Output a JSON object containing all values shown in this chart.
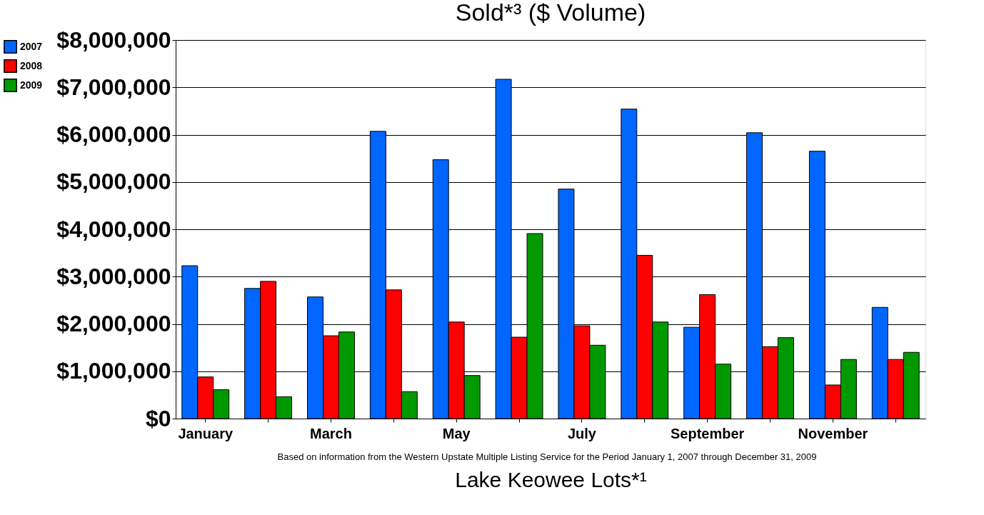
{
  "chart_data": {
    "type": "bar",
    "title": "Sold*³ ($ Volume)",
    "xlabel": "Lake Keowee Lots*¹",
    "annotations": [
      "Based on information from the Western Upstate Multiple Listing Service for the Period January 1, 2007 through December 31, 2009"
    ],
    "categories": [
      "January",
      null,
      "March",
      null,
      "May",
      null,
      "July",
      null,
      "September",
      null,
      "November",
      null
    ],
    "series": [
      {
        "name": "2007",
        "color": "#0066ff",
        "values": [
          3230000,
          2750000,
          2570000,
          6070000,
          5470000,
          7170000,
          4850000,
          6540000,
          1930000,
          6040000,
          5650000,
          2350000
        ]
      },
      {
        "name": "2008",
        "color": "#ff0000",
        "values": [
          880000,
          2900000,
          1750000,
          2720000,
          2040000,
          1720000,
          1960000,
          3450000,
          2620000,
          1520000,
          710000,
          1250000
        ]
      },
      {
        "name": "2009",
        "color": "#009900",
        "values": [
          610000,
          460000,
          1830000,
          570000,
          910000,
          3910000,
          1550000,
          2040000,
          1150000,
          1710000,
          1250000,
          1400000
        ]
      }
    ],
    "ylim": [
      0,
      8000000
    ],
    "yticks": [
      {
        "value": 0,
        "label": "$0"
      },
      {
        "value": 1000000,
        "label": "$1,000,000"
      },
      {
        "value": 2000000,
        "label": "$2,000,000"
      },
      {
        "value": 3000000,
        "label": "$3,000,000"
      },
      {
        "value": 4000000,
        "label": "$4,000,000"
      },
      {
        "value": 5000000,
        "label": "$5,000,000"
      },
      {
        "value": 6000000,
        "label": "$6,000,000"
      },
      {
        "value": 7000000,
        "label": "$7,000,000"
      },
      {
        "value": 8000000,
        "label": "$8,000,000"
      }
    ],
    "grid": "y",
    "legend": "left"
  }
}
